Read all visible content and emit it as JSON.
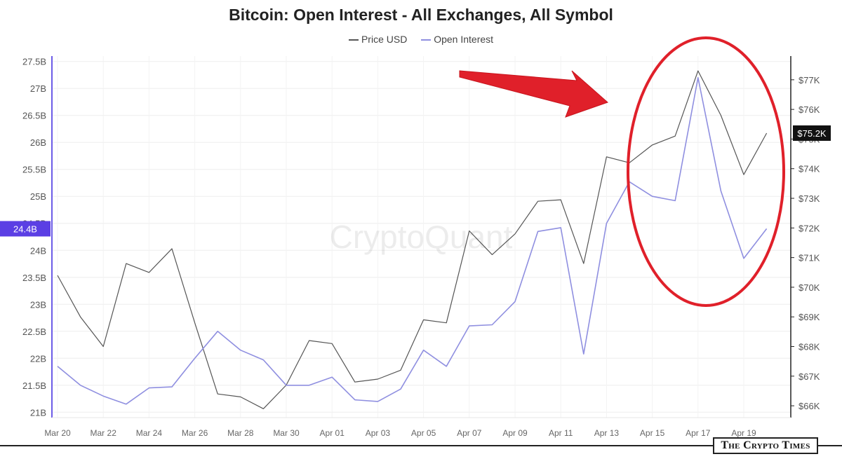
{
  "colors": {
    "price_line": "#555555",
    "oi_line": "#8f8fe0",
    "oi_axis": "#6c5ce7",
    "oi_badge": "#5b3fe4",
    "price_badge": "#111111",
    "annotation_red": "#e0202a"
  },
  "watermark": "CryptoQuant",
  "brand": "The Crypto Times",
  "chart_data": {
    "type": "line",
    "title": "Bitcoin: Open Interest - All Exchanges, All Symbol",
    "legend_position": "top-center",
    "grid": true,
    "x_dates": [
      "Mar 20",
      "Mar 21",
      "Mar 22",
      "Mar 23",
      "Mar 24",
      "Mar 25",
      "Mar 26",
      "Mar 27",
      "Mar 28",
      "Mar 29",
      "Mar 30",
      "Mar 31",
      "Apr 01",
      "Apr 02",
      "Apr 03",
      "Apr 04",
      "Apr 05",
      "Apr 06",
      "Apr 07",
      "Apr 08",
      "Apr 09",
      "Apr 10",
      "Apr 11",
      "Apr 12",
      "Apr 13",
      "Apr 14",
      "Apr 15",
      "Apr 16",
      "Apr 17",
      "Apr 18",
      "Apr 19",
      "Apr 20"
    ],
    "x_tick_labels": [
      "Mar 20",
      "Mar 22",
      "Mar 24",
      "Mar 26",
      "Mar 28",
      "Mar 30",
      "Apr 01",
      "Apr 03",
      "Apr 05",
      "Apr 07",
      "Apr 09",
      "Apr 11",
      "Apr 13",
      "Apr 15",
      "Apr 17",
      "Apr 19"
    ],
    "left_axis": {
      "ticks": [
        "21B",
        "21.5B",
        "22B",
        "22.5B",
        "23B",
        "23.5B",
        "24B",
        "24.5B",
        "25B",
        "25.5B",
        "26B",
        "26.5B",
        "27B",
        "27.5B"
      ],
      "range": [
        20.9,
        27.6
      ],
      "current_label": "24.4B"
    },
    "right_axis": {
      "ticks": [
        "$66K",
        "$67K",
        "$68K",
        "$69K",
        "$70K",
        "$71K",
        "$72K",
        "$73K",
        "$74K",
        "$75K",
        "$76K",
        "$77K"
      ],
      "range": [
        65.6,
        77.8
      ],
      "current_label": "$75.2K"
    },
    "series": [
      {
        "name": "Price USD",
        "axis": "right",
        "unit": "thousand USD",
        "values": [
          70.4,
          69.0,
          68.0,
          70.8,
          70.5,
          71.3,
          68.8,
          66.4,
          66.3,
          65.9,
          66.7,
          68.2,
          68.1,
          66.8,
          66.9,
          67.2,
          68.9,
          68.8,
          71.9,
          71.1,
          71.8,
          72.9,
          72.95,
          70.8,
          74.4,
          74.2,
          74.8,
          75.1,
          77.3,
          75.8,
          73.8,
          75.2
        ]
      },
      {
        "name": "Open Interest",
        "axis": "left",
        "unit": "billion USD",
        "values": [
          21.85,
          21.5,
          21.3,
          21.15,
          21.45,
          21.47,
          22.0,
          22.5,
          22.15,
          21.97,
          21.5,
          21.5,
          21.65,
          21.23,
          21.2,
          21.43,
          22.15,
          21.85,
          22.6,
          22.62,
          23.05,
          24.35,
          24.42,
          22.08,
          24.5,
          25.27,
          25.0,
          24.92,
          27.2,
          25.1,
          23.85,
          24.4
        ]
      }
    ]
  }
}
